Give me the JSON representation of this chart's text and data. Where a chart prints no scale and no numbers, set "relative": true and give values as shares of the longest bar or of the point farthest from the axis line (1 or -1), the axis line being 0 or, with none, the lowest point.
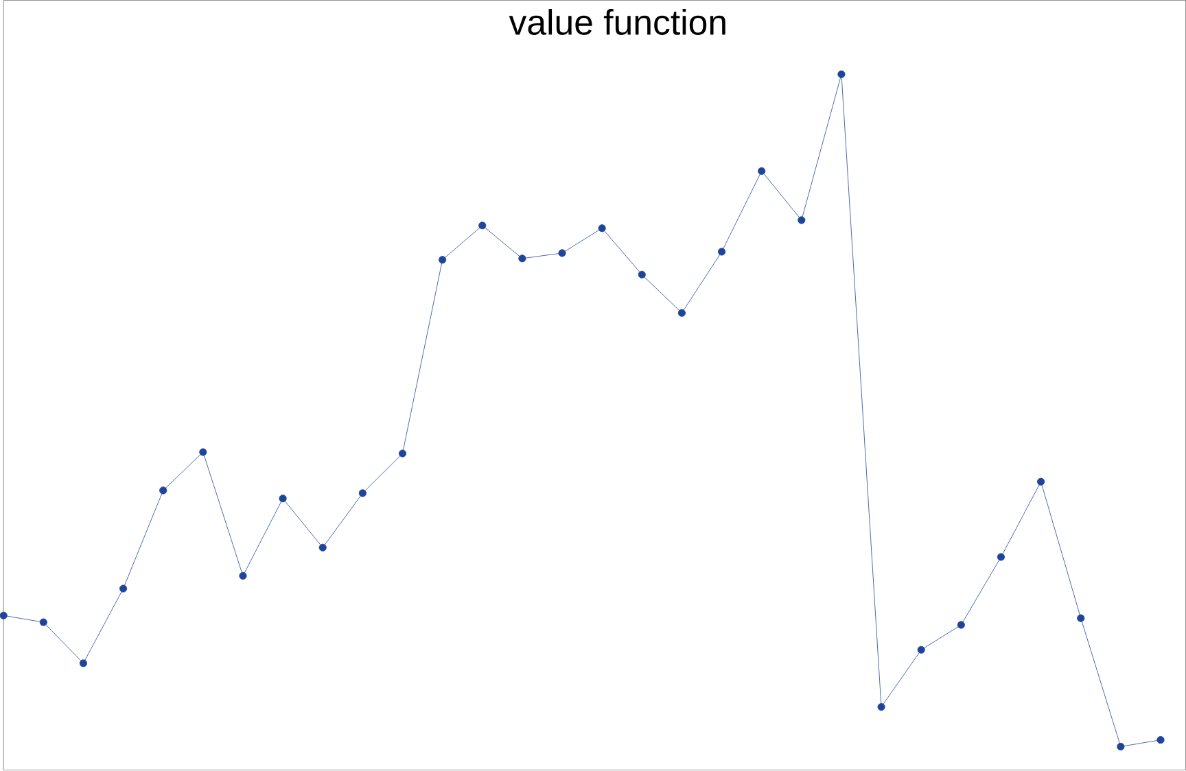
{
  "chart_data": {
    "type": "line",
    "title": "value function",
    "relative": true,
    "marker": "circle",
    "line_style": "solid",
    "categories": [
      null,
      null,
      null,
      null,
      null,
      null,
      null,
      null,
      null,
      null,
      null,
      null,
      null,
      null,
      null,
      null,
      null,
      null,
      null,
      null,
      null,
      null,
      null,
      null,
      null,
      null,
      null,
      null,
      null,
      null
    ],
    "series": [
      {
        "color": "#1f449c",
        "values": [
          0.195,
          0.185,
          0.124,
          0.235,
          0.381,
          0.438,
          0.254,
          0.369,
          0.296,
          0.377,
          0.436,
          0.724,
          0.775,
          0.726,
          0.734,
          0.771,
          0.702,
          0.645,
          0.736,
          0.856,
          0.783,
          1,
          0.059,
          0.144,
          0.181,
          0.282,
          0.394,
          0.191,
          0,
          0.01
        ]
      }
    ]
  }
}
